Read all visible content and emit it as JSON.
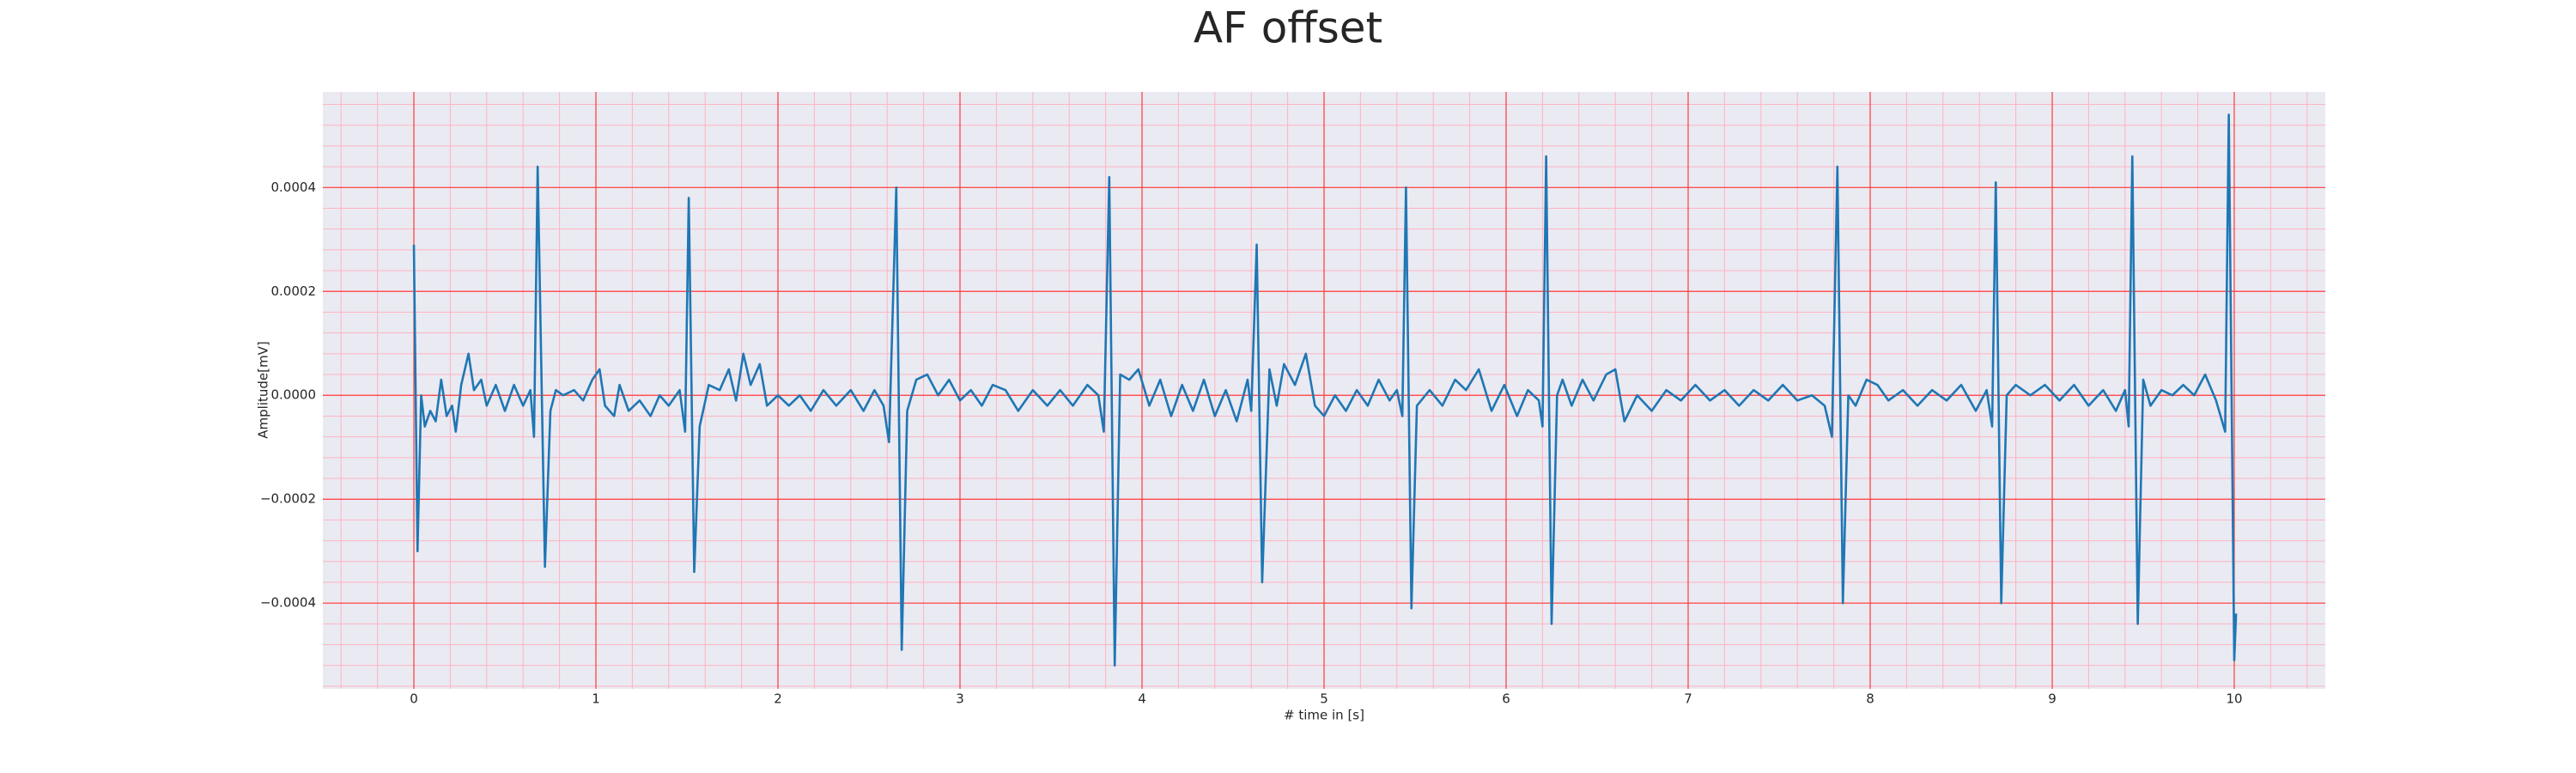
{
  "chart_data": {
    "type": "line",
    "title": "AF offset",
    "x_label": "# time in [s]",
    "y_label": "Amplitude[mV]",
    "color": "#1f77b4",
    "grid": true,
    "grid_color": "#ff3b3b",
    "minor_grid": true,
    "minor_grid_color": "#ffb3c1",
    "xlim": [
      -0.5,
      10.5
    ],
    "ylim": [
      -0.000565,
      0.000584
    ],
    "xticks": [
      0,
      1,
      2,
      3,
      4,
      5,
      6,
      7,
      8,
      9,
      10
    ],
    "yticks": [
      {
        "value": -0.0004,
        "label": "−0.0004"
      },
      {
        "value": -0.0002,
        "label": "−0.0002"
      },
      {
        "value": 0,
        "label": "0.0000"
      },
      {
        "value": 0.0002,
        "label": "0.0002"
      },
      {
        "value": 0.0004,
        "label": "0.0004"
      }
    ],
    "x": [
      0.0,
      0.02,
      0.04,
      0.06,
      0.09,
      0.12,
      0.15,
      0.18,
      0.21,
      0.23,
      0.26,
      0.3,
      0.33,
      0.37,
      0.4,
      0.45,
      0.5,
      0.55,
      0.6,
      0.64,
      0.66,
      0.68,
      0.72,
      0.75,
      0.78,
      0.82,
      0.88,
      0.93,
      0.98,
      1.02,
      1.05,
      1.1,
      1.13,
      1.18,
      1.24,
      1.3,
      1.35,
      1.4,
      1.46,
      1.49,
      1.51,
      1.54,
      1.57,
      1.62,
      1.68,
      1.73,
      1.77,
      1.81,
      1.85,
      1.9,
      1.94,
      2.0,
      2.06,
      2.12,
      2.18,
      2.25,
      2.32,
      2.4,
      2.47,
      2.53,
      2.58,
      2.61,
      2.65,
      2.68,
      2.71,
      2.76,
      2.82,
      2.88,
      2.94,
      3.0,
      3.06,
      3.12,
      3.18,
      3.25,
      3.32,
      3.4,
      3.48,
      3.55,
      3.62,
      3.7,
      3.76,
      3.79,
      3.82,
      3.85,
      3.88,
      3.93,
      3.98,
      4.04,
      4.1,
      4.16,
      4.22,
      4.28,
      4.34,
      4.4,
      4.46,
      4.52,
      4.58,
      4.6,
      4.63,
      4.66,
      4.7,
      4.74,
      4.78,
      4.84,
      4.9,
      4.95,
      5.0,
      5.06,
      5.12,
      5.18,
      5.24,
      5.3,
      5.36,
      5.4,
      5.43,
      5.45,
      5.48,
      5.51,
      5.58,
      5.65,
      5.72,
      5.78,
      5.85,
      5.92,
      5.99,
      6.06,
      6.12,
      6.18,
      6.2,
      6.22,
      6.25,
      6.28,
      6.31,
      6.36,
      6.42,
      6.48,
      6.55,
      6.6,
      6.65,
      6.72,
      6.8,
      6.88,
      6.96,
      7.04,
      7.12,
      7.2,
      7.28,
      7.36,
      7.44,
      7.52,
      7.6,
      7.68,
      7.75,
      7.79,
      7.82,
      7.85,
      7.88,
      7.92,
      7.98,
      8.04,
      8.1,
      8.18,
      8.26,
      8.34,
      8.42,
      8.5,
      8.58,
      8.64,
      8.67,
      8.69,
      8.72,
      8.75,
      8.8,
      8.88,
      8.96,
      9.04,
      9.12,
      9.2,
      9.28,
      9.35,
      9.4,
      9.42,
      9.44,
      9.47,
      9.5,
      9.54,
      9.6,
      9.66,
      9.72,
      9.78,
      9.84,
      9.9,
      9.95,
      9.97,
      10.0,
      10.01
    ],
    "values": [
      0.00029,
      -0.0003,
      0.0,
      -6e-05,
      -3e-05,
      -5e-05,
      3e-05,
      -4e-05,
      -2e-05,
      -7e-05,
      2e-05,
      8e-05,
      1e-05,
      3e-05,
      -2e-05,
      2e-05,
      -3e-05,
      2e-05,
      -2e-05,
      1e-05,
      -8e-05,
      0.00044,
      -0.00033,
      -3e-05,
      1e-05,
      0.0,
      1e-05,
      -1e-05,
      3e-05,
      5e-05,
      -2e-05,
      -4e-05,
      2e-05,
      -3e-05,
      -1e-05,
      -4e-05,
      0.0,
      -2e-05,
      1e-05,
      -7e-05,
      0.00038,
      -0.00034,
      -6e-05,
      2e-05,
      1e-05,
      5e-05,
      -1e-05,
      8e-05,
      2e-05,
      6e-05,
      -2e-05,
      0.0,
      -2e-05,
      0.0,
      -3e-05,
      1e-05,
      -2e-05,
      1e-05,
      -3e-05,
      1e-05,
      -2e-05,
      -9e-05,
      0.0004,
      -0.00049,
      -3e-05,
      3e-05,
      4e-05,
      0.0,
      3e-05,
      -1e-05,
      1e-05,
      -2e-05,
      2e-05,
      1e-05,
      -3e-05,
      1e-05,
      -2e-05,
      1e-05,
      -2e-05,
      2e-05,
      0.0,
      -7e-05,
      0.00042,
      -0.00052,
      4e-05,
      3e-05,
      5e-05,
      -2e-05,
      3e-05,
      -4e-05,
      2e-05,
      -3e-05,
      3e-05,
      -4e-05,
      1e-05,
      -5e-05,
      3e-05,
      -3e-05,
      0.00029,
      -0.00036,
      5e-05,
      -2e-05,
      6e-05,
      2e-05,
      8e-05,
      -2e-05,
      -4e-05,
      0.0,
      -3e-05,
      1e-05,
      -2e-05,
      3e-05,
      -1e-05,
      1e-05,
      -4e-05,
      0.0004,
      -0.00041,
      -2e-05,
      1e-05,
      -2e-05,
      3e-05,
      1e-05,
      5e-05,
      -3e-05,
      2e-05,
      -4e-05,
      1e-05,
      -1e-05,
      -6e-05,
      0.00046,
      -0.00044,
      0.0,
      3e-05,
      -2e-05,
      3e-05,
      -1e-05,
      4e-05,
      5e-05,
      -5e-05,
      0.0,
      -3e-05,
      1e-05,
      -1e-05,
      2e-05,
      -1e-05,
      1e-05,
      -2e-05,
      1e-05,
      -1e-05,
      2e-05,
      -1e-05,
      0.0,
      -2e-05,
      -8e-05,
      0.00044,
      -0.0004,
      0.0,
      -2e-05,
      3e-05,
      2e-05,
      -1e-05,
      1e-05,
      -2e-05,
      1e-05,
      -1e-05,
      2e-05,
      -3e-05,
      1e-05,
      -6e-05,
      0.00041,
      -0.0004,
      0.0,
      2e-05,
      0.0,
      2e-05,
      -1e-05,
      2e-05,
      -2e-05,
      1e-05,
      -3e-05,
      1e-05,
      -6e-05,
      0.00046,
      -0.00044,
      3e-05,
      -2e-05,
      1e-05,
      0.0,
      2e-05,
      0.0,
      4e-05,
      -1e-05,
      -7e-05,
      0.00054,
      -0.00051,
      -0.00042
    ]
  }
}
